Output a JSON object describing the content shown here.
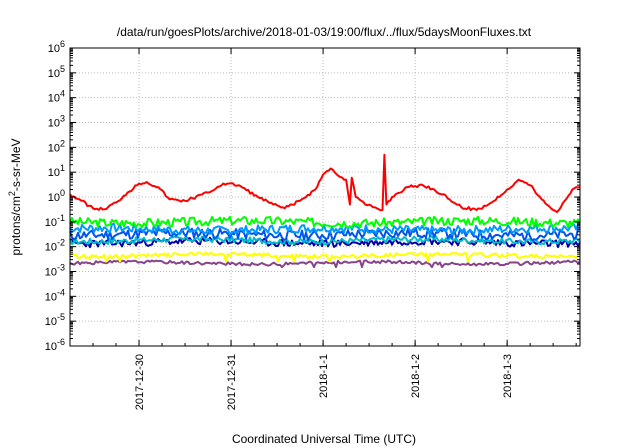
{
  "chart_data": {
    "type": "line",
    "title": "/data/run/goesPlots/archive/2018-01-03/19:00/flux/../flux/5daysMoonFluxes.txt",
    "xlabel": "Coordinated Universal Time (UTC)",
    "ylabel_parts": {
      "pre": "protons/cm",
      "sup": "2",
      "post": "-s-sr-MeV"
    },
    "yscale": "log",
    "ylim_exp": [
      -6,
      6
    ],
    "y_ticks": [
      {
        "base": "10",
        "exp": "-6"
      },
      {
        "base": "10",
        "exp": "-5"
      },
      {
        "base": "10",
        "exp": "-4"
      },
      {
        "base": "10",
        "exp": "-3"
      },
      {
        "base": "10",
        "exp": "-2"
      },
      {
        "base": "10",
        "exp": "-1"
      },
      {
        "base": "10",
        "exp": "0"
      },
      {
        "base": "10",
        "exp": "1"
      },
      {
        "base": "10",
        "exp": "2"
      },
      {
        "base": "10",
        "exp": "3"
      },
      {
        "base": "10",
        "exp": "4"
      },
      {
        "base": "10",
        "exp": "5"
      },
      {
        "base": "10",
        "exp": "6"
      }
    ],
    "xlim": [
      "2017-12-29 06:00",
      "2018-01-03 19:00"
    ],
    "x_ticks": [
      {
        "label": "2017-12-30",
        "date": "2017-12-30 00:00"
      },
      {
        "label": "2017-12-31",
        "date": "2017-12-31 00:00"
      },
      {
        "label": "2018-1-1",
        "date": "2018-01-01 00:00"
      },
      {
        "label": "2018-1-2",
        "date": "2018-01-02 00:00"
      },
      {
        "label": "2018-1-3",
        "date": "2018-01-03 00:00"
      }
    ],
    "grid": true,
    "series": [
      {
        "color": "#ff0000",
        "pattern": "red",
        "nodes": [
          [
            "2017-12-29 06:00",
            1.3
          ],
          [
            "2017-12-29 09:00",
            0.7
          ],
          [
            "2017-12-29 12:00",
            0.35
          ],
          [
            "2017-12-29 15:00",
            0.32
          ],
          [
            "2017-12-29 18:00",
            0.6
          ],
          [
            "2017-12-29 21:00",
            1.5
          ],
          [
            "2017-12-30 00:00",
            3.5
          ],
          [
            "2017-12-30 02:00",
            4.0
          ],
          [
            "2017-12-30 05:00",
            2.5
          ],
          [
            "2017-12-30 08:00",
            0.8
          ],
          [
            "2017-12-30 12:00",
            0.7
          ],
          [
            "2017-12-30 18:00",
            1.5
          ],
          [
            "2017-12-30 22:00",
            3.5
          ],
          [
            "2017-12-31 02:00",
            3.0
          ],
          [
            "2017-12-31 07:00",
            1.0
          ],
          [
            "2017-12-31 11:00",
            0.5
          ],
          [
            "2017-12-31 14:00",
            0.35
          ],
          [
            "2017-12-31 18:00",
            0.7
          ],
          [
            "2017-12-31 22:00",
            2.0
          ],
          [
            "2018-01-01 00:00",
            8.0
          ],
          [
            "2018-01-01 02:00",
            14.0
          ],
          [
            "2018-01-01 03:00",
            10.0
          ],
          [
            "2018-01-01 05:00",
            6.0
          ],
          [
            "2018-01-01 06:00",
            5.0
          ],
          [
            "2018-01-01 07:00",
            0.5
          ],
          [
            "2018-01-01 07:30",
            6.0
          ],
          [
            "2018-01-01 08:30",
            1.0
          ],
          [
            "2018-01-01 11:00",
            0.5
          ],
          [
            "2018-01-01 14:00",
            0.35
          ],
          [
            "2018-01-01 15:30",
            0.3
          ],
          [
            "2018-01-01 16:00",
            50.0
          ],
          [
            "2018-01-01 16:30",
            0.5
          ],
          [
            "2018-01-01 18:00",
            1.0
          ],
          [
            "2018-01-01 22:00",
            2.5
          ],
          [
            "2018-01-02 02:00",
            3.0
          ],
          [
            "2018-01-02 05:00",
            2.0
          ],
          [
            "2018-01-02 09:00",
            0.8
          ],
          [
            "2018-01-02 12:00",
            0.4
          ],
          [
            "2018-01-02 16:00",
            0.3
          ],
          [
            "2018-01-02 20:00",
            0.6
          ],
          [
            "2018-01-03 00:00",
            2.0
          ],
          [
            "2018-01-03 03:00",
            5.0
          ],
          [
            "2018-01-03 06:00",
            3.0
          ],
          [
            "2018-01-03 09:00",
            0.8
          ],
          [
            "2018-01-03 12:00",
            0.3
          ],
          [
            "2018-01-03 13:00",
            0.25
          ],
          [
            "2018-01-03 15:00",
            0.7
          ],
          [
            "2018-01-03 17:00",
            2.0
          ],
          [
            "2018-01-03 18:00",
            2.5
          ],
          [
            "2018-01-03 19:00",
            2.5
          ]
        ]
      },
      {
        "color": "#00ff00",
        "pattern": "noise",
        "base": 0.1,
        "amp": 0.18,
        "seed": 3
      },
      {
        "color": "#0099ff",
        "pattern": "noise",
        "base": 0.05,
        "amp": 0.18,
        "seed": 7
      },
      {
        "color": "#0055ee",
        "pattern": "noise",
        "base": 0.032,
        "amp": 0.2,
        "seed": 11
      },
      {
        "color": "#00bbcc",
        "pattern": "noise",
        "base": 0.018,
        "amp": 0.12,
        "seed": 17
      },
      {
        "color": "#0000aa",
        "pattern": "noise",
        "base": 0.015,
        "amp": 0.15,
        "seed": 23
      },
      {
        "color": "#ffff00",
        "pattern": "noise",
        "base": 0.0045,
        "amp": 0.08,
        "seed": 29,
        "dips": 0.0025
      },
      {
        "color": "#884488",
        "pattern": "noise",
        "base": 0.0022,
        "amp": 0.06,
        "seed": 31,
        "dips": 0.0015
      }
    ]
  }
}
